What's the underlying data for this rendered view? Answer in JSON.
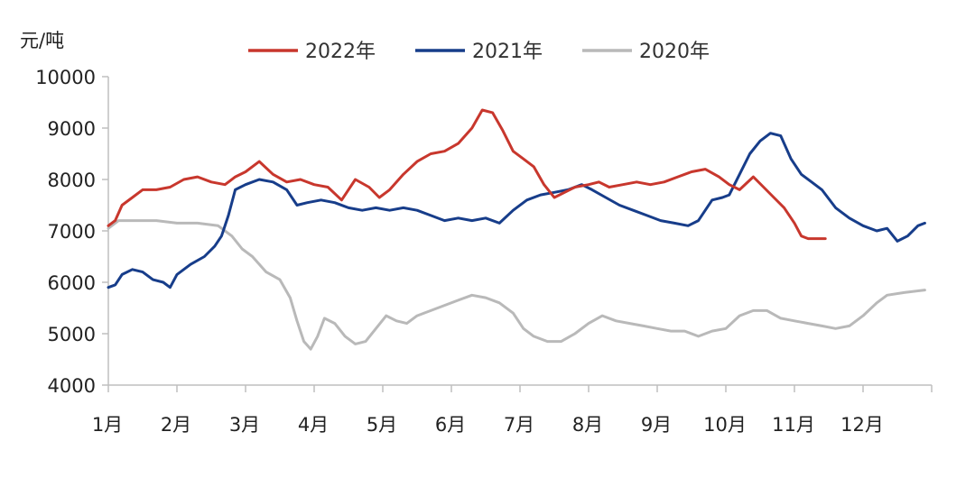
{
  "chart_data": {
    "type": "line",
    "unit_label": "元/吨",
    "ylim": [
      4000,
      10000
    ],
    "yticks": [
      4000,
      5000,
      6000,
      7000,
      8000,
      9000,
      10000
    ],
    "categories": [
      "1月",
      "2月",
      "3月",
      "4月",
      "5月",
      "6月",
      "7月",
      "8月",
      "9月",
      "10月",
      "11月",
      "12月"
    ],
    "legend_position": "top",
    "grid": false,
    "series": [
      {
        "name": "2022年",
        "color": "#c8372d",
        "points": [
          [
            0.0,
            7100
          ],
          [
            0.1,
            7200
          ],
          [
            0.2,
            7500
          ],
          [
            0.35,
            7650
          ],
          [
            0.5,
            7800
          ],
          [
            0.7,
            7800
          ],
          [
            0.9,
            7850
          ],
          [
            1.1,
            8000
          ],
          [
            1.3,
            8050
          ],
          [
            1.5,
            7950
          ],
          [
            1.7,
            7900
          ],
          [
            1.85,
            8050
          ],
          [
            2.0,
            8150
          ],
          [
            2.2,
            8350
          ],
          [
            2.4,
            8100
          ],
          [
            2.6,
            7950
          ],
          [
            2.8,
            8000
          ],
          [
            3.0,
            7900
          ],
          [
            3.2,
            7850
          ],
          [
            3.4,
            7600
          ],
          [
            3.6,
            8000
          ],
          [
            3.8,
            7850
          ],
          [
            3.95,
            7650
          ],
          [
            4.1,
            7800
          ],
          [
            4.3,
            8100
          ],
          [
            4.5,
            8350
          ],
          [
            4.7,
            8500
          ],
          [
            4.9,
            8550
          ],
          [
            5.1,
            8700
          ],
          [
            5.3,
            9000
          ],
          [
            5.45,
            9350
          ],
          [
            5.6,
            9300
          ],
          [
            5.75,
            8950
          ],
          [
            5.9,
            8550
          ],
          [
            6.05,
            8400
          ],
          [
            6.2,
            8250
          ],
          [
            6.35,
            7900
          ],
          [
            6.5,
            7650
          ],
          [
            6.65,
            7750
          ],
          [
            6.8,
            7850
          ],
          [
            7.0,
            7900
          ],
          [
            7.15,
            7950
          ],
          [
            7.3,
            7850
          ],
          [
            7.5,
            7900
          ],
          [
            7.7,
            7950
          ],
          [
            7.9,
            7900
          ],
          [
            8.1,
            7950
          ],
          [
            8.3,
            8050
          ],
          [
            8.5,
            8150
          ],
          [
            8.7,
            8200
          ],
          [
            8.9,
            8050
          ],
          [
            9.05,
            7900
          ],
          [
            9.2,
            7800
          ],
          [
            9.4,
            8050
          ],
          [
            9.55,
            7850
          ],
          [
            9.7,
            7650
          ],
          [
            9.85,
            7450
          ],
          [
            10.0,
            7150
          ],
          [
            10.1,
            6900
          ],
          [
            10.2,
            6850
          ],
          [
            10.3,
            6850
          ],
          [
            10.45,
            6850
          ]
        ]
      },
      {
        "name": "2021年",
        "color": "#173d8a",
        "points": [
          [
            0.0,
            5900
          ],
          [
            0.1,
            5950
          ],
          [
            0.2,
            6150
          ],
          [
            0.35,
            6250
          ],
          [
            0.5,
            6200
          ],
          [
            0.65,
            6050
          ],
          [
            0.8,
            6000
          ],
          [
            0.9,
            5900
          ],
          [
            1.0,
            6150
          ],
          [
            1.2,
            6350
          ],
          [
            1.4,
            6500
          ],
          [
            1.55,
            6700
          ],
          [
            1.65,
            6900
          ],
          [
            1.75,
            7300
          ],
          [
            1.85,
            7800
          ],
          [
            2.0,
            7900
          ],
          [
            2.2,
            8000
          ],
          [
            2.4,
            7950
          ],
          [
            2.6,
            7800
          ],
          [
            2.75,
            7500
          ],
          [
            2.9,
            7550
          ],
          [
            3.1,
            7600
          ],
          [
            3.3,
            7550
          ],
          [
            3.5,
            7450
          ],
          [
            3.7,
            7400
          ],
          [
            3.9,
            7450
          ],
          [
            4.1,
            7400
          ],
          [
            4.3,
            7450
          ],
          [
            4.5,
            7400
          ],
          [
            4.7,
            7300
          ],
          [
            4.9,
            7200
          ],
          [
            5.1,
            7250
          ],
          [
            5.3,
            7200
          ],
          [
            5.5,
            7250
          ],
          [
            5.7,
            7150
          ],
          [
            5.9,
            7400
          ],
          [
            6.1,
            7600
          ],
          [
            6.3,
            7700
          ],
          [
            6.5,
            7750
          ],
          [
            6.7,
            7800
          ],
          [
            6.9,
            7900
          ],
          [
            7.05,
            7800
          ],
          [
            7.25,
            7650
          ],
          [
            7.45,
            7500
          ],
          [
            7.65,
            7400
          ],
          [
            7.85,
            7300
          ],
          [
            8.05,
            7200
          ],
          [
            8.25,
            7150
          ],
          [
            8.45,
            7100
          ],
          [
            8.6,
            7200
          ],
          [
            8.8,
            7600
          ],
          [
            8.95,
            7650
          ],
          [
            9.05,
            7700
          ],
          [
            9.2,
            8100
          ],
          [
            9.35,
            8500
          ],
          [
            9.5,
            8750
          ],
          [
            9.65,
            8900
          ],
          [
            9.8,
            8850
          ],
          [
            9.95,
            8400
          ],
          [
            10.1,
            8100
          ],
          [
            10.25,
            7950
          ],
          [
            10.4,
            7800
          ],
          [
            10.6,
            7450
          ],
          [
            10.8,
            7250
          ],
          [
            11.0,
            7100
          ],
          [
            11.2,
            7000
          ],
          [
            11.35,
            7050
          ],
          [
            11.5,
            6800
          ],
          [
            11.65,
            6900
          ],
          [
            11.8,
            7100
          ],
          [
            11.9,
            7150
          ]
        ]
      },
      {
        "name": "2020年",
        "color": "#b9b9b9",
        "points": [
          [
            0.0,
            7050
          ],
          [
            0.15,
            7200
          ],
          [
            0.4,
            7200
          ],
          [
            0.7,
            7200
          ],
          [
            1.0,
            7150
          ],
          [
            1.3,
            7150
          ],
          [
            1.6,
            7100
          ],
          [
            1.8,
            6900
          ],
          [
            1.95,
            6650
          ],
          [
            2.1,
            6500
          ],
          [
            2.3,
            6200
          ],
          [
            2.5,
            6050
          ],
          [
            2.65,
            5700
          ],
          [
            2.75,
            5250
          ],
          [
            2.85,
            4850
          ],
          [
            2.95,
            4700
          ],
          [
            3.05,
            4950
          ],
          [
            3.15,
            5300
          ],
          [
            3.3,
            5200
          ],
          [
            3.45,
            4950
          ],
          [
            3.6,
            4800
          ],
          [
            3.75,
            4850
          ],
          [
            3.9,
            5100
          ],
          [
            4.05,
            5350
          ],
          [
            4.2,
            5250
          ],
          [
            4.35,
            5200
          ],
          [
            4.5,
            5350
          ],
          [
            4.7,
            5450
          ],
          [
            4.9,
            5550
          ],
          [
            5.1,
            5650
          ],
          [
            5.3,
            5750
          ],
          [
            5.5,
            5700
          ],
          [
            5.7,
            5600
          ],
          [
            5.9,
            5400
          ],
          [
            6.05,
            5100
          ],
          [
            6.2,
            4950
          ],
          [
            6.4,
            4850
          ],
          [
            6.6,
            4850
          ],
          [
            6.8,
            5000
          ],
          [
            7.0,
            5200
          ],
          [
            7.2,
            5350
          ],
          [
            7.4,
            5250
          ],
          [
            7.6,
            5200
          ],
          [
            7.8,
            5150
          ],
          [
            8.0,
            5100
          ],
          [
            8.2,
            5050
          ],
          [
            8.4,
            5050
          ],
          [
            8.6,
            4950
          ],
          [
            8.8,
            5050
          ],
          [
            9.0,
            5100
          ],
          [
            9.2,
            5350
          ],
          [
            9.4,
            5450
          ],
          [
            9.6,
            5450
          ],
          [
            9.8,
            5300
          ],
          [
            10.0,
            5250
          ],
          [
            10.2,
            5200
          ],
          [
            10.4,
            5150
          ],
          [
            10.6,
            5100
          ],
          [
            10.8,
            5150
          ],
          [
            11.0,
            5350
          ],
          [
            11.2,
            5600
          ],
          [
            11.35,
            5750
          ],
          [
            11.6,
            5800
          ],
          [
            11.9,
            5850
          ]
        ]
      }
    ]
  }
}
